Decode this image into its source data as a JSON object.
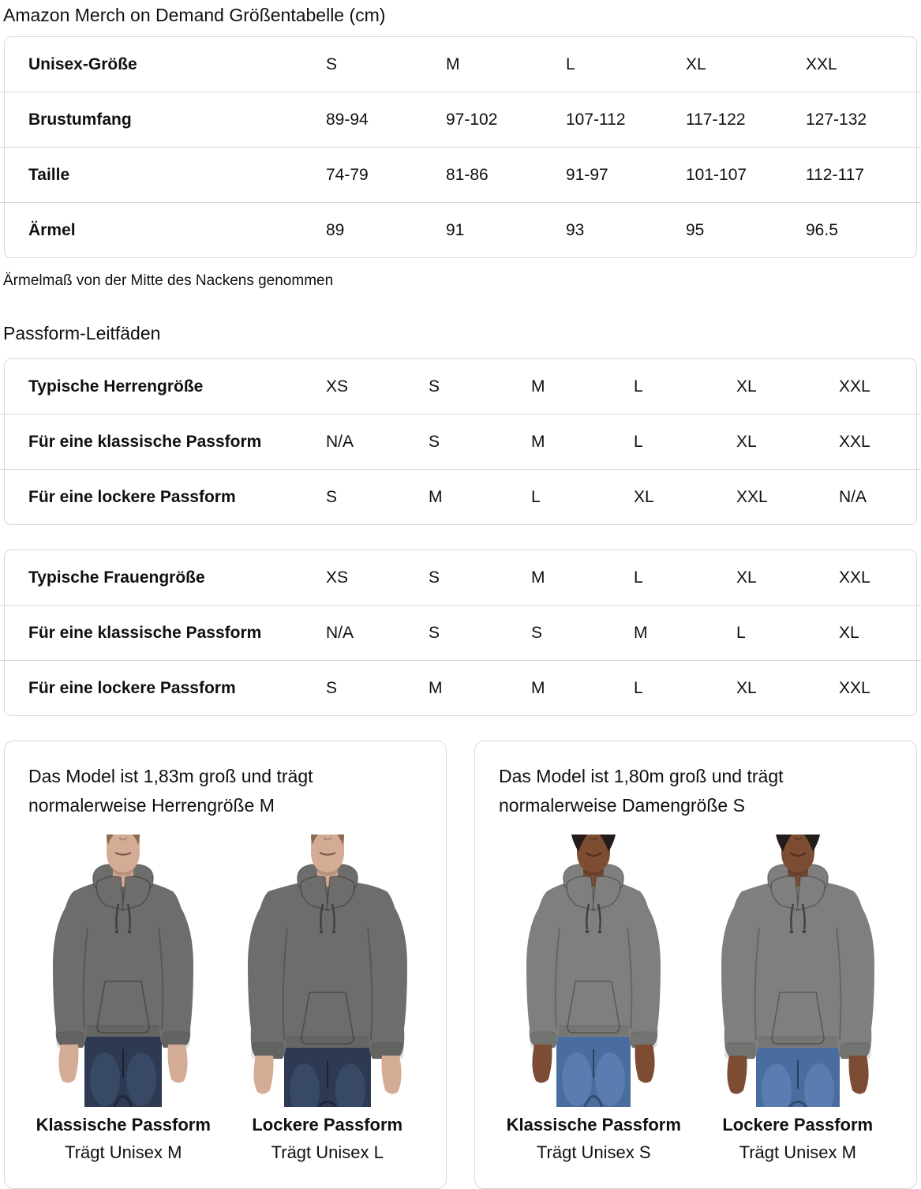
{
  "page": {
    "title": "Amazon Merch on Demand Größentabelle (cm)",
    "note": "Ärmelmaß von der Mitte des Nackens genommen",
    "fit_heading": "Passform-Leitfäden"
  },
  "theme": {
    "text_color": "#0f1111",
    "border_color": "#d5d9d9",
    "background": "#ffffff"
  },
  "size_table": {
    "rows": [
      {
        "label": "Unisex-Größe",
        "values": [
          "S",
          "M",
          "L",
          "XL",
          "XXL"
        ]
      },
      {
        "label": "Brustumfang",
        "values": [
          "89-94",
          "97-102",
          "107-112",
          "117-122",
          "127-132"
        ]
      },
      {
        "label": "Taille",
        "values": [
          "74-79",
          "81-86",
          "91-97",
          "101-107",
          "112-117"
        ]
      },
      {
        "label": "Ärmel",
        "values": [
          "89",
          "91",
          "93",
          "95",
          "96.5"
        ]
      }
    ]
  },
  "fit_tables": [
    {
      "rows": [
        {
          "label": "Typische Herrengröße",
          "values": [
            "XS",
            "S",
            "M",
            "L",
            "XL",
            "XXL"
          ]
        },
        {
          "label": "Für eine klassische Passform",
          "values": [
            "N/A",
            "S",
            "M",
            "L",
            "XL",
            "XXL"
          ]
        },
        {
          "label": "Für eine lockere Passform",
          "values": [
            "S",
            "M",
            "L",
            "XL",
            "XXL",
            "N/A"
          ]
        }
      ]
    },
    {
      "rows": [
        {
          "label": "Typische Frauengröße",
          "values": [
            "XS",
            "S",
            "M",
            "L",
            "XL",
            "XXL"
          ]
        },
        {
          "label": "Für eine klassische Passform",
          "values": [
            "N/A",
            "S",
            "S",
            "M",
            "L",
            "XL"
          ]
        },
        {
          "label": "Für eine lockere Passform",
          "values": [
            "S",
            "M",
            "M",
            "L",
            "XL",
            "XXL"
          ]
        }
      ]
    }
  ],
  "model_cards": [
    {
      "person": "male",
      "description": "Das Model ist 1,83m groß und trägt normalerweise Herrengröße M",
      "photo_colors": {
        "skin": "#d4ab95",
        "hair": "#8a6a4f",
        "hoodie": "#6d6d6b",
        "jeans": "#2d3a52",
        "jeans_light": "#44587a"
      },
      "figures": [
        {
          "fit": "classic",
          "fit_label": "Klassische Passform",
          "wears": "Trägt Unisex M"
        },
        {
          "fit": "loose",
          "fit_label": "Lockere Passform",
          "wears": "Trägt Unisex L"
        }
      ]
    },
    {
      "person": "female",
      "description": "Das Model ist 1,80m groß und trägt normalerweise Damengröße S",
      "photo_colors": {
        "skin": "#7c4c33",
        "hair": "#241c18",
        "hoodie": "#7f807e",
        "jeans": "#4a6da0",
        "jeans_light": "#6b8cc0"
      },
      "figures": [
        {
          "fit": "classic",
          "fit_label": "Klassische Passform",
          "wears": "Trägt Unisex S"
        },
        {
          "fit": "loose",
          "fit_label": "Lockere Passform",
          "wears": "Trägt Unisex M"
        }
      ]
    }
  ]
}
